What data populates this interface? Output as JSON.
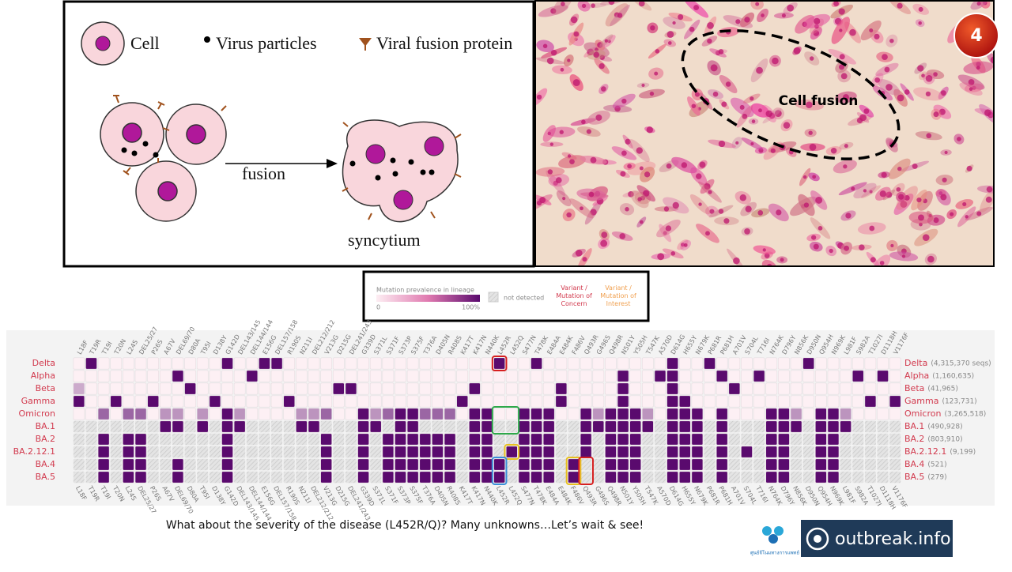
{
  "slide_number": "4",
  "diagram": {
    "legend": [
      "Cell",
      "Virus particles",
      "Viral fusion protein"
    ],
    "arrow_label": "fusion",
    "result_label": "syncytium"
  },
  "photo": {
    "annotation": "Cell fusion"
  },
  "heatmap_legend": {
    "title": "Mutation prevalence in lineage",
    "min_label": "0",
    "max_label": "100%",
    "not_detected": "not detected",
    "concern": "Variant / Mutation of Concern",
    "interest": "Variant / Mutation of Interest"
  },
  "heatmap": {
    "mutations": [
      "L18F",
      "T19R",
      "T19I",
      "T20N",
      "L24S",
      "DEL25/27",
      "P26S",
      "A67V",
      "DEL69/70",
      "D80A",
      "T95I",
      "D138Y",
      "G142D",
      "DEL143/145",
      "DEL144/144",
      "E156G",
      "DEL157/158",
      "R190S",
      "N211I",
      "DEL212/212",
      "V213G",
      "D215G",
      "DEL241/243",
      "G339D",
      "S371L",
      "S371F",
      "S373P",
      "S375F",
      "T376A",
      "D405N",
      "R408S",
      "K417T",
      "K417N",
      "N440K",
      "L452R",
      "L452Q",
      "S477N",
      "T478K",
      "E484A",
      "E484K",
      "F486V",
      "Q493R",
      "G496S",
      "Q498R",
      "N501Y",
      "Y505H",
      "T547K",
      "A570D",
      "D614G",
      "H655Y",
      "N679K",
      "P681R",
      "P681H",
      "A701V",
      "S704L",
      "T716I",
      "N764K",
      "D796Y",
      "N856K",
      "D950N",
      "Q954H",
      "N969K",
      "L981F",
      "S982A",
      "T1027I",
      "D1118H",
      "V1176F"
    ],
    "lineages": [
      "Delta",
      "Alpha",
      "Beta",
      "Gamma",
      "Omicron",
      "BA.1",
      "BA.2",
      "BA.2.12.1",
      "BA.4",
      "BA.5"
    ],
    "counts": [
      "(4,315,370 seqs)",
      "(1,160,635)",
      "(41,965)",
      "(123,731)",
      "(3,265,518)",
      "(490,928)",
      "(803,910)",
      "(9,199)",
      "(521)",
      "(279)"
    ],
    "values": [
      [
        0,
        100,
        0,
        0,
        0,
        0,
        0,
        0,
        0,
        0,
        0,
        0,
        100,
        0,
        0,
        100,
        100,
        0,
        0,
        0,
        0,
        0,
        0,
        0,
        0,
        0,
        0,
        0,
        0,
        0,
        0,
        0,
        0,
        0,
        100,
        0,
        0,
        100,
        0,
        0,
        0,
        0,
        0,
        0,
        0,
        0,
        0,
        0,
        100,
        0,
        0,
        100,
        0,
        0,
        0,
        0,
        0,
        0,
        0,
        100,
        0,
        0,
        0,
        0,
        0,
        0,
        0
      ],
      [
        0,
        0,
        0,
        0,
        0,
        0,
        0,
        0,
        100,
        0,
        0,
        0,
        0,
        0,
        100,
        0,
        0,
        0,
        0,
        0,
        0,
        0,
        0,
        0,
        0,
        0,
        0,
        0,
        0,
        0,
        0,
        0,
        0,
        0,
        0,
        0,
        0,
        0,
        0,
        0,
        0,
        0,
        0,
        0,
        100,
        0,
        0,
        100,
        100,
        0,
        0,
        0,
        100,
        0,
        0,
        100,
        0,
        0,
        0,
        0,
        0,
        0,
        0,
        100,
        0,
        100,
        0
      ],
      [
        30,
        0,
        0,
        0,
        0,
        0,
        0,
        0,
        0,
        100,
        0,
        0,
        0,
        0,
        0,
        0,
        0,
        0,
        0,
        0,
        0,
        100,
        100,
        0,
        0,
        0,
        0,
        0,
        0,
        0,
        0,
        0,
        100,
        0,
        0,
        0,
        0,
        0,
        0,
        100,
        0,
        0,
        0,
        0,
        100,
        0,
        0,
        0,
        100,
        0,
        0,
        0,
        0,
        100,
        0,
        0,
        0,
        0,
        0,
        0,
        0,
        0,
        0,
        0,
        0,
        0,
        0
      ],
      [
        100,
        0,
        0,
        100,
        0,
        0,
        100,
        0,
        0,
        0,
        0,
        100,
        0,
        0,
        0,
        0,
        0,
        100,
        0,
        0,
        0,
        0,
        0,
        0,
        0,
        0,
        0,
        0,
        0,
        0,
        0,
        100,
        0,
        0,
        0,
        0,
        0,
        0,
        0,
        100,
        0,
        0,
        0,
        0,
        100,
        0,
        0,
        0,
        100,
        100,
        0,
        0,
        0,
        0,
        0,
        0,
        0,
        0,
        0,
        0,
        0,
        0,
        0,
        0,
        100,
        0,
        100
      ],
      [
        0,
        0,
        60,
        0,
        60,
        60,
        0,
        40,
        40,
        0,
        40,
        0,
        100,
        40,
        0,
        0,
        0,
        0,
        40,
        40,
        60,
        0,
        0,
        100,
        40,
        60,
        100,
        100,
        60,
        60,
        60,
        0,
        100,
        100,
        0,
        0,
        100,
        100,
        100,
        0,
        0,
        100,
        40,
        100,
        100,
        100,
        40,
        0,
        100,
        100,
        100,
        0,
        100,
        0,
        0,
        0,
        100,
        100,
        40,
        0,
        100,
        100,
        40,
        0,
        0,
        0,
        0
      ],
      [
        null,
        null,
        null,
        null,
        null,
        null,
        null,
        100,
        100,
        null,
        100,
        null,
        100,
        100,
        null,
        null,
        null,
        null,
        100,
        100,
        null,
        null,
        null,
        100,
        100,
        null,
        100,
        100,
        null,
        null,
        null,
        null,
        100,
        100,
        null,
        null,
        100,
        100,
        100,
        null,
        null,
        100,
        100,
        100,
        100,
        100,
        100,
        null,
        100,
        100,
        100,
        null,
        100,
        null,
        null,
        null,
        100,
        100,
        100,
        null,
        100,
        100,
        100,
        null,
        null,
        null,
        null
      ],
      [
        null,
        null,
        100,
        null,
        100,
        100,
        null,
        null,
        null,
        null,
        null,
        null,
        100,
        null,
        null,
        null,
        null,
        null,
        null,
        null,
        100,
        null,
        null,
        100,
        null,
        100,
        100,
        100,
        100,
        100,
        100,
        null,
        100,
        100,
        null,
        null,
        100,
        100,
        100,
        null,
        null,
        100,
        null,
        100,
        100,
        100,
        null,
        null,
        100,
        100,
        100,
        null,
        100,
        null,
        null,
        null,
        100,
        100,
        null,
        null,
        100,
        100,
        null,
        null,
        null,
        null,
        null
      ],
      [
        null,
        null,
        100,
        null,
        100,
        100,
        null,
        null,
        null,
        null,
        null,
        null,
        100,
        null,
        null,
        null,
        null,
        null,
        null,
        null,
        100,
        null,
        null,
        100,
        null,
        100,
        100,
        100,
        100,
        100,
        100,
        null,
        100,
        100,
        null,
        100,
        100,
        100,
        100,
        null,
        null,
        100,
        null,
        100,
        100,
        100,
        null,
        null,
        100,
        100,
        100,
        null,
        100,
        null,
        100,
        null,
        100,
        100,
        null,
        null,
        100,
        100,
        null,
        null,
        null,
        null,
        null
      ],
      [
        null,
        null,
        100,
        null,
        100,
        100,
        null,
        null,
        100,
        null,
        null,
        null,
        100,
        null,
        null,
        null,
        null,
        null,
        null,
        null,
        100,
        null,
        null,
        100,
        null,
        100,
        100,
        100,
        100,
        100,
        100,
        null,
        100,
        100,
        100,
        null,
        100,
        100,
        100,
        null,
        100,
        null,
        null,
        100,
        100,
        100,
        null,
        null,
        100,
        100,
        100,
        null,
        100,
        null,
        null,
        null,
        100,
        100,
        null,
        null,
        100,
        100,
        null,
        null,
        null,
        null,
        null
      ],
      [
        null,
        null,
        100,
        null,
        100,
        100,
        null,
        null,
        100,
        null,
        null,
        null,
        100,
        null,
        null,
        null,
        null,
        null,
        null,
        null,
        100,
        null,
        null,
        100,
        null,
        100,
        100,
        100,
        100,
        100,
        100,
        null,
        100,
        100,
        100,
        null,
        100,
        100,
        100,
        null,
        100,
        null,
        null,
        100,
        100,
        100,
        null,
        null,
        100,
        100,
        100,
        null,
        100,
        null,
        null,
        null,
        100,
        100,
        null,
        null,
        100,
        100,
        null,
        null,
        null,
        null,
        null
      ]
    ]
  },
  "caption": "What about the severity of the disease (L452R/Q)? Many unknowns…Let’s wait & see!",
  "logos": {
    "left_text": "ศูนย์จีโนมทางการแพทย์",
    "right_text": "outbreak.info"
  }
}
